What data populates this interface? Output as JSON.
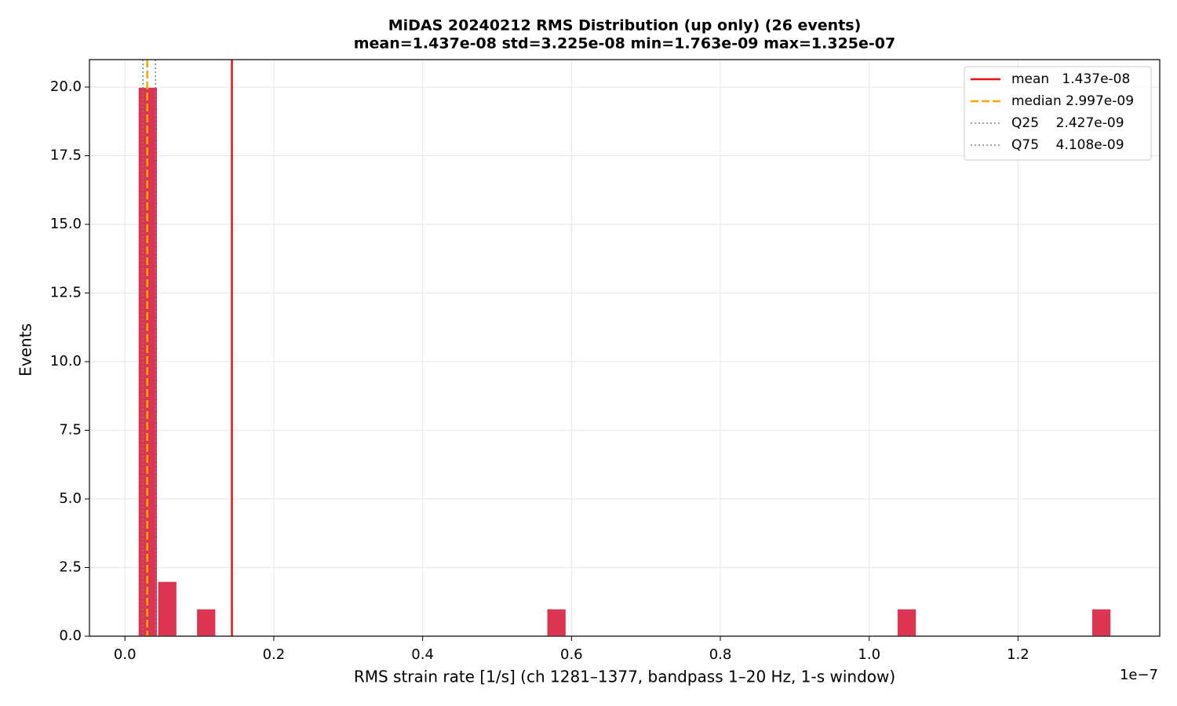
{
  "chart_data": {
    "type": "histogram",
    "title": "MiDAS 20240212  RMS Distribution  (up only)  (26 events)",
    "subtitle": "mean=1.437e-08  std=3.225e-08  min=1.763e-09  max=1.325e-07",
    "x_label": "RMS strain rate [1/s]  (ch 1281–1377, bandpass 1–20 Hz, 1-s window)",
    "x_offset_label": "1e−7",
    "y_label": "Events",
    "color": "#dc3552",
    "bins": [
      0.01763,
      0.04378,
      0.06992,
      0.09607,
      0.12222,
      0.14837,
      0.17451,
      0.20066,
      0.22681,
      0.25296,
      0.2791,
      0.30525,
      0.3314,
      0.35755,
      0.38369,
      0.40984,
      0.43599,
      0.46214,
      0.48828,
      0.51443,
      0.54058,
      0.56673,
      0.59287,
      0.61902,
      0.64517,
      0.67132,
      0.69746,
      0.72361,
      0.74976,
      0.77591,
      0.80205,
      0.8282,
      0.85435,
      0.8805,
      0.90664,
      0.93279,
      0.95894,
      0.98509,
      1.01123,
      1.03738,
      1.06353,
      1.08968,
      1.11582,
      1.14197,
      1.16812,
      1.19427,
      1.22041,
      1.24656,
      1.27271,
      1.29886,
      1.325
    ],
    "values": [
      20,
      2,
      0,
      1,
      0,
      0,
      0,
      0,
      0,
      0,
      0,
      0,
      0,
      0,
      0,
      0,
      0,
      0,
      0,
      0,
      0,
      1,
      0,
      0,
      0,
      0,
      0,
      0,
      0,
      0,
      0,
      0,
      0,
      0,
      0,
      0,
      0,
      0,
      0,
      1,
      0,
      0,
      0,
      0,
      0,
      0,
      0,
      0,
      0,
      1
    ],
    "vlines": [
      {
        "name": "mean   1.437e-08",
        "value": 0.1437,
        "color": "#ee1111",
        "dash": "solid"
      },
      {
        "name": "median 2.997e-09",
        "value": 0.02997,
        "color": "#ffa500",
        "dash": "dashed"
      },
      {
        "name": "Q25    2.427e-09",
        "value": 0.02427,
        "color": "#808080",
        "dash": "dotted"
      },
      {
        "name": "Q75    4.108e-09",
        "value": 0.04108,
        "color": "#808080",
        "dash": "dotted"
      }
    ],
    "xlim": [
      -0.0477,
      1.3904
    ],
    "ylim": [
      0,
      21
    ],
    "xticks": [
      {
        "value": 0,
        "label": "0.0"
      },
      0.2,
      0.4,
      0.6,
      0.8,
      {
        "value": 1,
        "label": "1.0"
      },
      1.2
    ],
    "yticks": [
      {
        "value": 0,
        "label": "0.0"
      },
      2.5,
      {
        "value": 5,
        "label": "5.0"
      },
      7.5,
      {
        "value": 10,
        "label": "10.0"
      },
      12.5,
      {
        "value": 15,
        "label": "15.0"
      },
      17.5,
      {
        "value": 20,
        "label": "20.0"
      }
    ],
    "grid": true,
    "legend": "upper-right"
  }
}
